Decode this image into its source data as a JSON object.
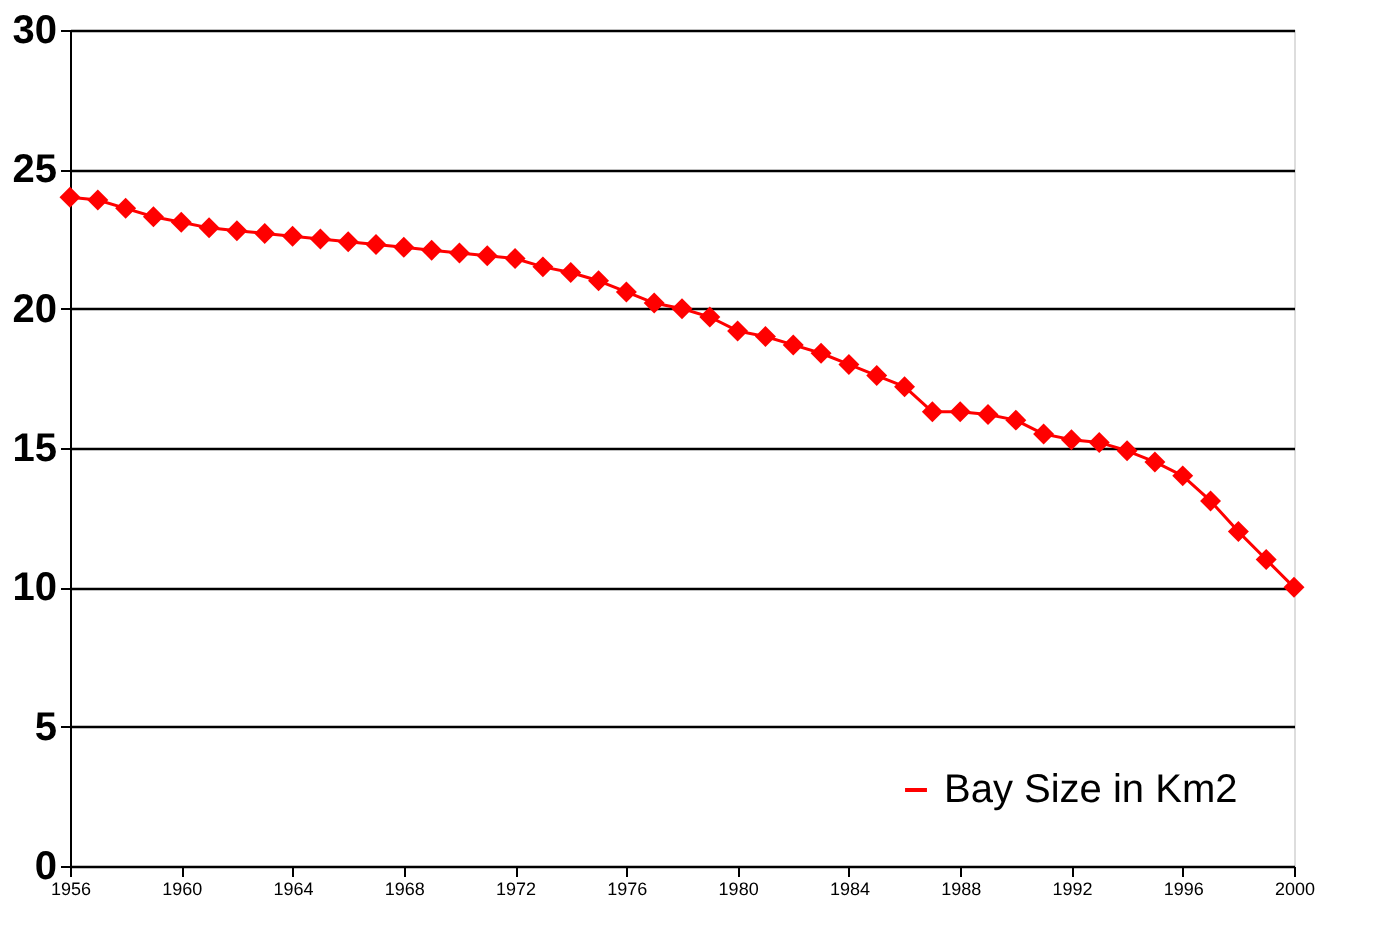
{
  "chart_data": {
    "type": "line",
    "x": [
      1956,
      1957,
      1958,
      1959,
      1960,
      1961,
      1962,
      1963,
      1964,
      1965,
      1966,
      1967,
      1968,
      1969,
      1970,
      1971,
      1972,
      1973,
      1974,
      1975,
      1976,
      1977,
      1978,
      1979,
      1980,
      1981,
      1982,
      1983,
      1984,
      1985,
      1986,
      1987,
      1988,
      1989,
      1990,
      1991,
      1992,
      1993,
      1994,
      1995,
      1996,
      1997,
      1998,
      1999,
      2000
    ],
    "series": [
      {
        "name": "Bay Size in Km2",
        "color": "#ff0000",
        "values": [
          24.0,
          23.9,
          23.6,
          23.3,
          23.1,
          22.9,
          22.8,
          22.7,
          22.6,
          22.5,
          22.4,
          22.3,
          22.2,
          22.1,
          22.0,
          21.9,
          21.8,
          21.5,
          21.3,
          21.0,
          20.6,
          20.2,
          20.0,
          19.7,
          19.2,
          19.0,
          18.7,
          18.4,
          18.0,
          17.6,
          17.2,
          16.3,
          16.3,
          16.2,
          16.0,
          15.5,
          15.3,
          15.2,
          14.9,
          14.5,
          14.0,
          13.1,
          12.0,
          11.0,
          10.0
        ]
      }
    ],
    "xlim": [
      1956,
      2000
    ],
    "xticks": [
      1956,
      1960,
      1964,
      1968,
      1972,
      1976,
      1980,
      1984,
      1988,
      1992,
      1996,
      2000
    ],
    "ylim": [
      0,
      30
    ],
    "yticks": [
      0,
      5,
      10,
      15,
      20,
      25,
      30
    ],
    "grid": "y",
    "legend": "bottom right",
    "marker": "diamond",
    "line_style": "solid"
  }
}
